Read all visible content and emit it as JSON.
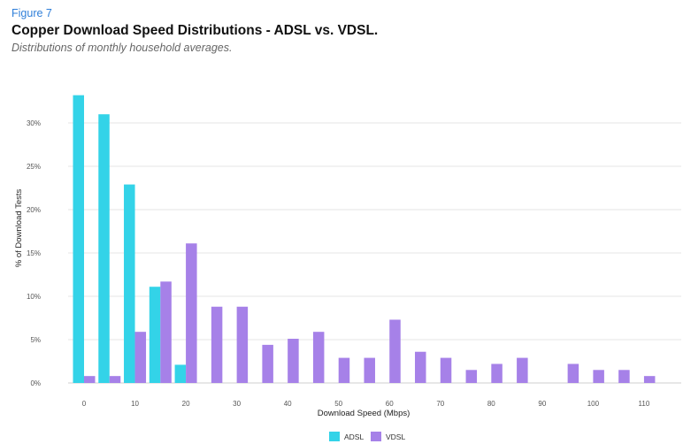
{
  "header": {
    "figure_label": "Figure 7",
    "title": "Copper Download Speed Distributions - ADSL vs. VDSL.",
    "subtitle": "Distributions of monthly household averages."
  },
  "chart_data": {
    "type": "bar",
    "xlabel": "Download Speed (Mbps)",
    "ylabel": "% of Download Tests",
    "ylim": [
      0,
      35
    ],
    "y_ticks": [
      {
        "value": 0,
        "label": "0%"
      },
      {
        "value": 5,
        "label": "5%"
      },
      {
        "value": 10,
        "label": "10%"
      },
      {
        "value": 15,
        "label": "15%"
      },
      {
        "value": 20,
        "label": "20%"
      },
      {
        "value": 25,
        "label": "25%"
      },
      {
        "value": 30,
        "label": "30%"
      }
    ],
    "x_tick_labels": [
      "0",
      "10",
      "20",
      "30",
      "40",
      "50",
      "60",
      "70",
      "80",
      "90",
      "100",
      "110"
    ],
    "grid": true,
    "legend_position": "bottom-center",
    "categories": [
      "0",
      "5",
      "10",
      "15",
      "20",
      "25",
      "30",
      "35",
      "40",
      "45",
      "50",
      "55",
      "60",
      "65",
      "70",
      "75",
      "80",
      "85",
      "90",
      "95",
      "100",
      "105",
      "110"
    ],
    "series": [
      {
        "name": "ADSL",
        "color": "#33d3e8",
        "values": [
          33.2,
          31.0,
          22.9,
          11.1,
          2.1,
          0,
          0,
          0,
          0,
          0,
          0,
          0,
          0,
          0,
          0,
          0,
          0,
          0,
          0,
          0,
          0,
          0,
          0
        ]
      },
      {
        "name": "VDSL",
        "color": "#a681e8",
        "values": [
          0.8,
          0.8,
          5.9,
          11.7,
          16.1,
          8.8,
          8.8,
          4.4,
          5.1,
          5.9,
          2.9,
          2.9,
          7.3,
          3.6,
          2.9,
          1.5,
          2.2,
          2.9,
          0,
          2.2,
          1.5,
          1.5,
          0.8
        ]
      }
    ]
  }
}
